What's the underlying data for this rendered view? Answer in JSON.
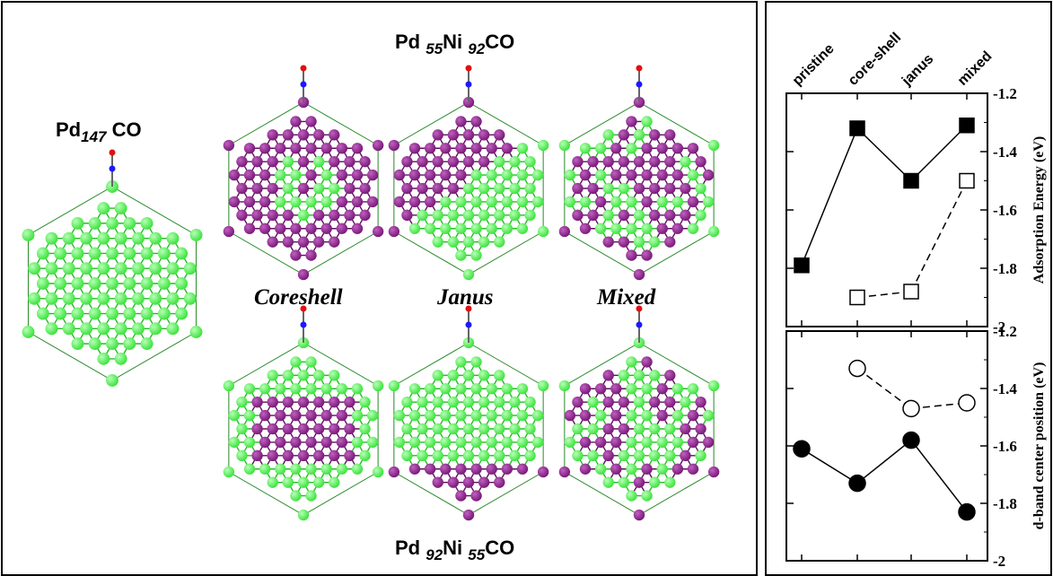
{
  "figure": {
    "title_pd147": {
      "main": "Pd",
      "sub": "147",
      "tail": " CO"
    },
    "title_top": {
      "pd": "Pd ",
      "pd_sub": "55",
      "ni": "Ni ",
      "ni_sub": "92",
      "tail": "CO"
    },
    "title_bottom": {
      "pd": "Pd ",
      "pd_sub": "92",
      "ni": "Ni ",
      "ni_sub": "55",
      "tail": "CO"
    },
    "structure_labels": [
      "Coreshell",
      "Janus",
      "Mixed"
    ],
    "colors": {
      "pd_atom": "#3ee43e",
      "ni_atom": "#7a1b7a",
      "carbon": "#1a1aff",
      "oxygen": "#e01010"
    }
  },
  "chart_data": [
    {
      "type": "line",
      "categories": [
        "pristine",
        "core-shell",
        "janus",
        "mixed"
      ],
      "ylabel": "Adsorption Energy (eV)",
      "ylim": [
        -2,
        -1.2
      ],
      "yticks": [
        "-1.2",
        "-1.4",
        "-1.6",
        "-1.8",
        "-2"
      ],
      "series": [
        {
          "marker": "filled-square",
          "line": "solid",
          "values": [
            -1.79,
            -1.32,
            -1.5,
            -1.31
          ]
        },
        {
          "marker": "open-square",
          "line": "dashed",
          "values": [
            null,
            -1.9,
            -1.88,
            -1.5
          ]
        }
      ]
    },
    {
      "type": "line",
      "categories": [
        "pristine",
        "core-shell",
        "janus",
        "mixed"
      ],
      "ylabel": "d-band center position (eV)",
      "ylim": [
        -2,
        -1.2
      ],
      "yticks": [
        "-1.2",
        "-1.4",
        "-1.6",
        "-1.8",
        "-2"
      ],
      "series": [
        {
          "marker": "filled-circle",
          "line": "solid",
          "values": [
            -1.61,
            -1.73,
            -1.58,
            -1.83
          ]
        },
        {
          "marker": "open-circle",
          "line": "dashed",
          "values": [
            null,
            -1.33,
            -1.47,
            -1.45
          ]
        }
      ]
    }
  ]
}
